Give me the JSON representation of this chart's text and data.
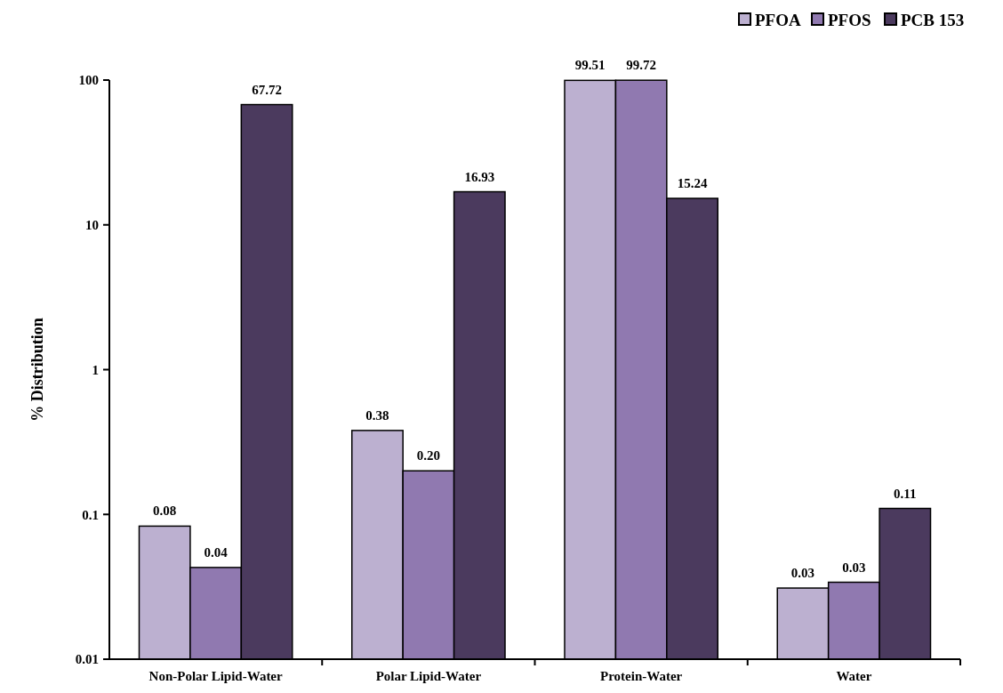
{
  "chart_data": {
    "type": "bar",
    "ylabel": "% Distribution",
    "categories": [
      "Non-Polar Lipid-Water",
      "Polar Lipid-Water",
      "Protein-Water",
      "Water"
    ],
    "series": [
      {
        "name": "PFOA",
        "color": "#bcb0d0",
        "values": [
          0.083,
          0.38,
          99.51,
          0.031
        ],
        "value_labels": [
          "0.08",
          "0.38",
          "99.51",
          "0.03"
        ]
      },
      {
        "name": "PFOS",
        "color": "#9079b0",
        "values": [
          0.043,
          0.2,
          99.72,
          0.034
        ],
        "value_labels": [
          "0.04",
          "0.20",
          "99.72",
          "0.03"
        ]
      },
      {
        "name": "PCB 153",
        "color": "#4b3a5e",
        "values": [
          67.72,
          16.93,
          15.24,
          0.11
        ],
        "value_labels": [
          "67.72",
          "16.93",
          "15.24",
          "0.11"
        ]
      }
    ],
    "log": true,
    "ylim": [
      0.01,
      100
    ],
    "yticks": [
      0.01,
      0.1,
      1,
      10,
      100
    ],
    "legend": "top right"
  }
}
